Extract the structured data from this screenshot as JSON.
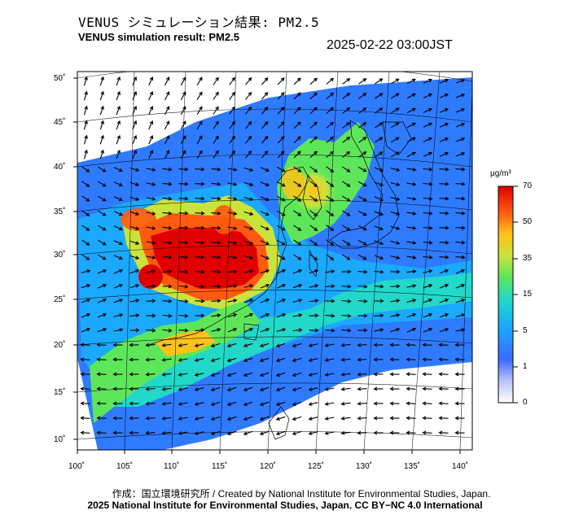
{
  "header": {
    "title_jp": "VENUS シミュレーション結果: PM2.5",
    "title_en": "VENUS simulation result: PM2.5",
    "datetime": "2025-02-22 03:00JST"
  },
  "map": {
    "lon_ticks": [
      "100˚",
      "105˚",
      "110˚",
      "115˚",
      "120˚",
      "125˚",
      "130˚",
      "135˚",
      "140˚"
    ],
    "lat_ticks": [
      "50˚",
      "45˚",
      "40˚",
      "35˚",
      "30˚",
      "25˚",
      "20˚",
      "15˚",
      "10˚"
    ]
  },
  "colorbar": {
    "unit": "μg/m³",
    "labels": [
      "70",
      "50",
      "35",
      "15",
      "5",
      "1",
      "0"
    ],
    "colors": [
      "#d8d8ff",
      "#3b6bff",
      "#1aa9ff",
      "#22d8c8",
      "#5ee65a",
      "#c9e33a",
      "#ffc21a",
      "#ff5a10",
      "#e00000"
    ]
  },
  "footer": {
    "credit": "作成：国立環境研究所 / Created by National Institute for Environmental Studies, Japan.",
    "copyright": "2025 National Institute for Environmental Studies, Japan. CC BY−NC 4.0 International"
  }
}
